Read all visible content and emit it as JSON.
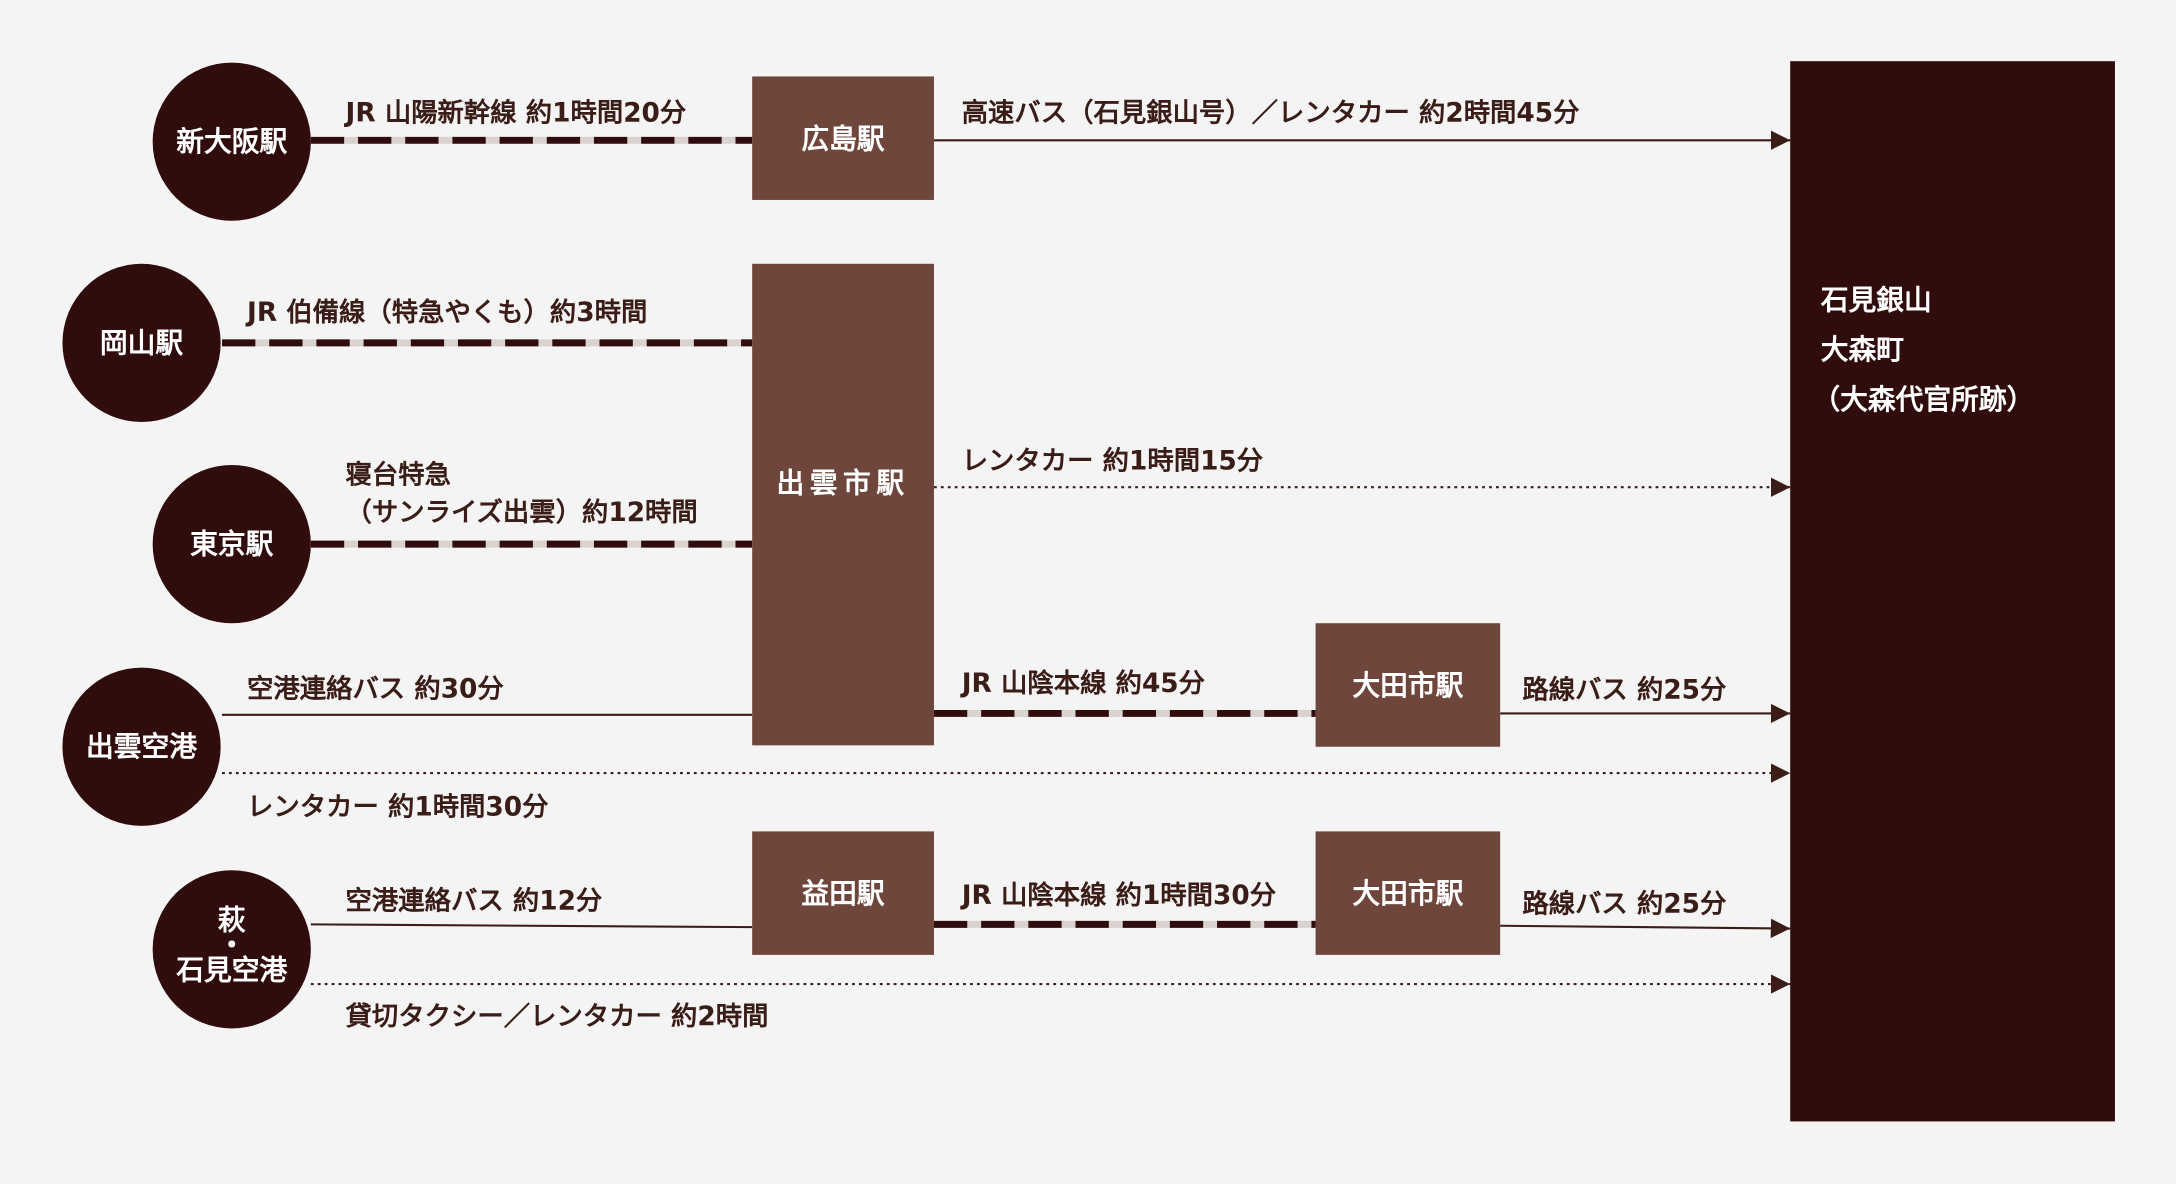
{
  "origins": [
    {
      "label": "新大阪駅"
    },
    {
      "label": "岡山駅"
    },
    {
      "label": "東京駅"
    },
    {
      "label": "出雲空港"
    },
    {
      "label_lines": [
        "萩",
        "・",
        "石見空港"
      ]
    }
  ],
  "hubs": [
    {
      "label": "広島駅"
    },
    {
      "label": "出雲市駅"
    },
    {
      "label": "大田市駅"
    },
    {
      "label": "益田駅"
    },
    {
      "label": "大田市駅"
    }
  ],
  "destination": {
    "lines": [
      "石見銀山",
      "大森町",
      "（大森代官所跡）"
    ]
  },
  "routes": [
    {
      "label": "JR 山陽新幹線 約1時間20分"
    },
    {
      "label": "高速バス（石見銀山号）／レンタカー 約2時間45分"
    },
    {
      "label": "JR 伯備線（特急やくも）約3時間"
    },
    {
      "label_lines": [
        "寝台特急",
        "（サンライズ出雲）約12時間"
      ]
    },
    {
      "label": "レンタカー 約1時間15分"
    },
    {
      "label": "JR 山陰本線 約45分"
    },
    {
      "label": "路線バス 約25分"
    },
    {
      "label": "空港連絡バス 約30分"
    },
    {
      "label": "レンタカー 約1時間30分"
    },
    {
      "label": "空港連絡バス 約12分"
    },
    {
      "label": "JR 山陰本線 約1時間30分"
    },
    {
      "label": "路線バス 約25分"
    },
    {
      "label": "貸切タクシー／レンタカー 約2時間"
    }
  ]
}
